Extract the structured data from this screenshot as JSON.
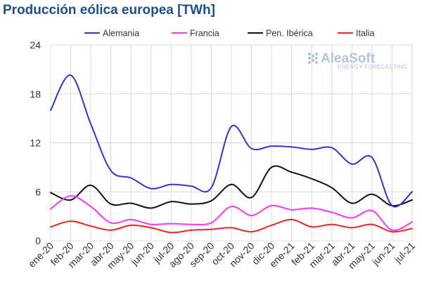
{
  "chart_data": {
    "type": "line",
    "title": "Producción eólica europea [TWh]",
    "categories": [
      "ene-20",
      "feb-20",
      "mar-20",
      "abr-20",
      "may-20",
      "jun-20",
      "jul-20",
      "ago-20",
      "sep-20",
      "oct-20",
      "nov-20",
      "dic-20",
      "ene-21",
      "feb-21",
      "mar-21",
      "abr-21",
      "may-21",
      "jun-21",
      "jul-21"
    ],
    "ylim": [
      0,
      24
    ],
    "yticks": [
      0,
      6,
      12,
      18,
      24
    ],
    "grid": true,
    "legend_position": "top",
    "series": [
      {
        "name": "Alemania",
        "color": "#3333cc",
        "values": [
          16.0,
          20.3,
          14.3,
          8.6,
          7.7,
          6.4,
          6.9,
          6.7,
          6.5,
          14.0,
          11.3,
          11.6,
          11.5,
          11.2,
          11.4,
          9.4,
          10.2,
          4.3,
          6.0
        ]
      },
      {
        "name": "Francia",
        "color": "#ff33ff",
        "values": [
          3.9,
          5.5,
          4.2,
          2.2,
          2.6,
          2.0,
          2.1,
          2.0,
          2.2,
          4.2,
          3.1,
          4.3,
          3.8,
          4.0,
          3.5,
          2.8,
          3.7,
          1.3,
          2.3
        ]
      },
      {
        "name": "Pen. Ibérica",
        "color": "#111111",
        "values": [
          5.9,
          5.0,
          6.8,
          4.5,
          4.6,
          4.0,
          4.8,
          4.5,
          4.9,
          6.9,
          5.3,
          9.0,
          8.4,
          7.6,
          6.5,
          4.6,
          5.7,
          4.3,
          5.0
        ]
      },
      {
        "name": "Italia",
        "color": "#ee2222",
        "values": [
          1.7,
          2.4,
          1.8,
          1.3,
          1.9,
          1.6,
          1.0,
          1.3,
          1.4,
          1.6,
          1.1,
          1.9,
          2.6,
          1.7,
          2.0,
          1.6,
          2.0,
          1.1,
          1.5
        ]
      }
    ]
  },
  "logo": {
    "name": "AleaSoft",
    "tagline": "ENERGY FORECASTING"
  }
}
